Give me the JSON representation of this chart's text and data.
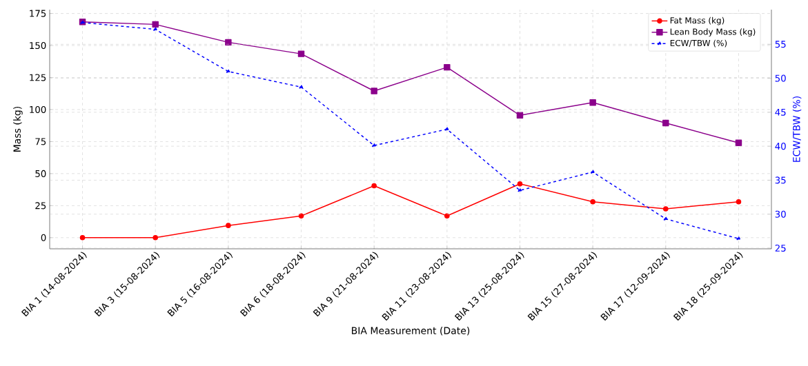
{
  "chart_data": {
    "type": "line",
    "xlabel": "BIA Measurement (Date)",
    "ylabel": "Mass (kg)",
    "y2label": "ECW/TBW (%)",
    "categories": [
      "BIA 1 (14-08-2024)",
      "BIA 3 (15-08-2024)",
      "BIA 5 (16-08-2024)",
      "BIA 6 (18-08-2024)",
      "BIA 9 (21-08-2024)",
      "BIA 11 (23-08-2024)",
      "BIA 13 (25-08-2024)",
      "BIA 15 (27-08-2024)",
      "BIA 17 (12-09-2024)",
      "BIA 18 (25-09-2024)"
    ],
    "series": [
      {
        "name": "Fat Mass (kg)",
        "color": "#ff0000",
        "marker": "circle",
        "line_style": "solid",
        "values": [
          0,
          0,
          9.5,
          17,
          40.5,
          17,
          42,
          28,
          22.5,
          28
        ]
      },
      {
        "name": "Lean Body Mass (kg)",
        "color": "#8b008b",
        "marker": "square",
        "line_style": "solid",
        "values": [
          168.5,
          166.5,
          152.5,
          143.5,
          114.5,
          133,
          95.5,
          105.5,
          89.5,
          74
        ]
      },
      {
        "name": "ECW/TBW (%)",
        "color": "#0000ff",
        "marker": "triangle",
        "line_style": "dashed",
        "axis": "y2",
        "values": [
          58.2,
          57.2,
          51,
          48.7,
          40.1,
          42.5,
          33.5,
          36.2,
          29.3,
          26.4
        ]
      }
    ],
    "ylim": [
      -8.7,
      178
    ],
    "yticks": [
      0,
      25,
      50,
      75,
      100,
      125,
      150,
      175
    ],
    "y2lim": [
      24.9,
      60.1
    ],
    "y2ticks": [
      25,
      30,
      35,
      40,
      45,
      50,
      55
    ],
    "grid": true,
    "legend": "top right"
  }
}
